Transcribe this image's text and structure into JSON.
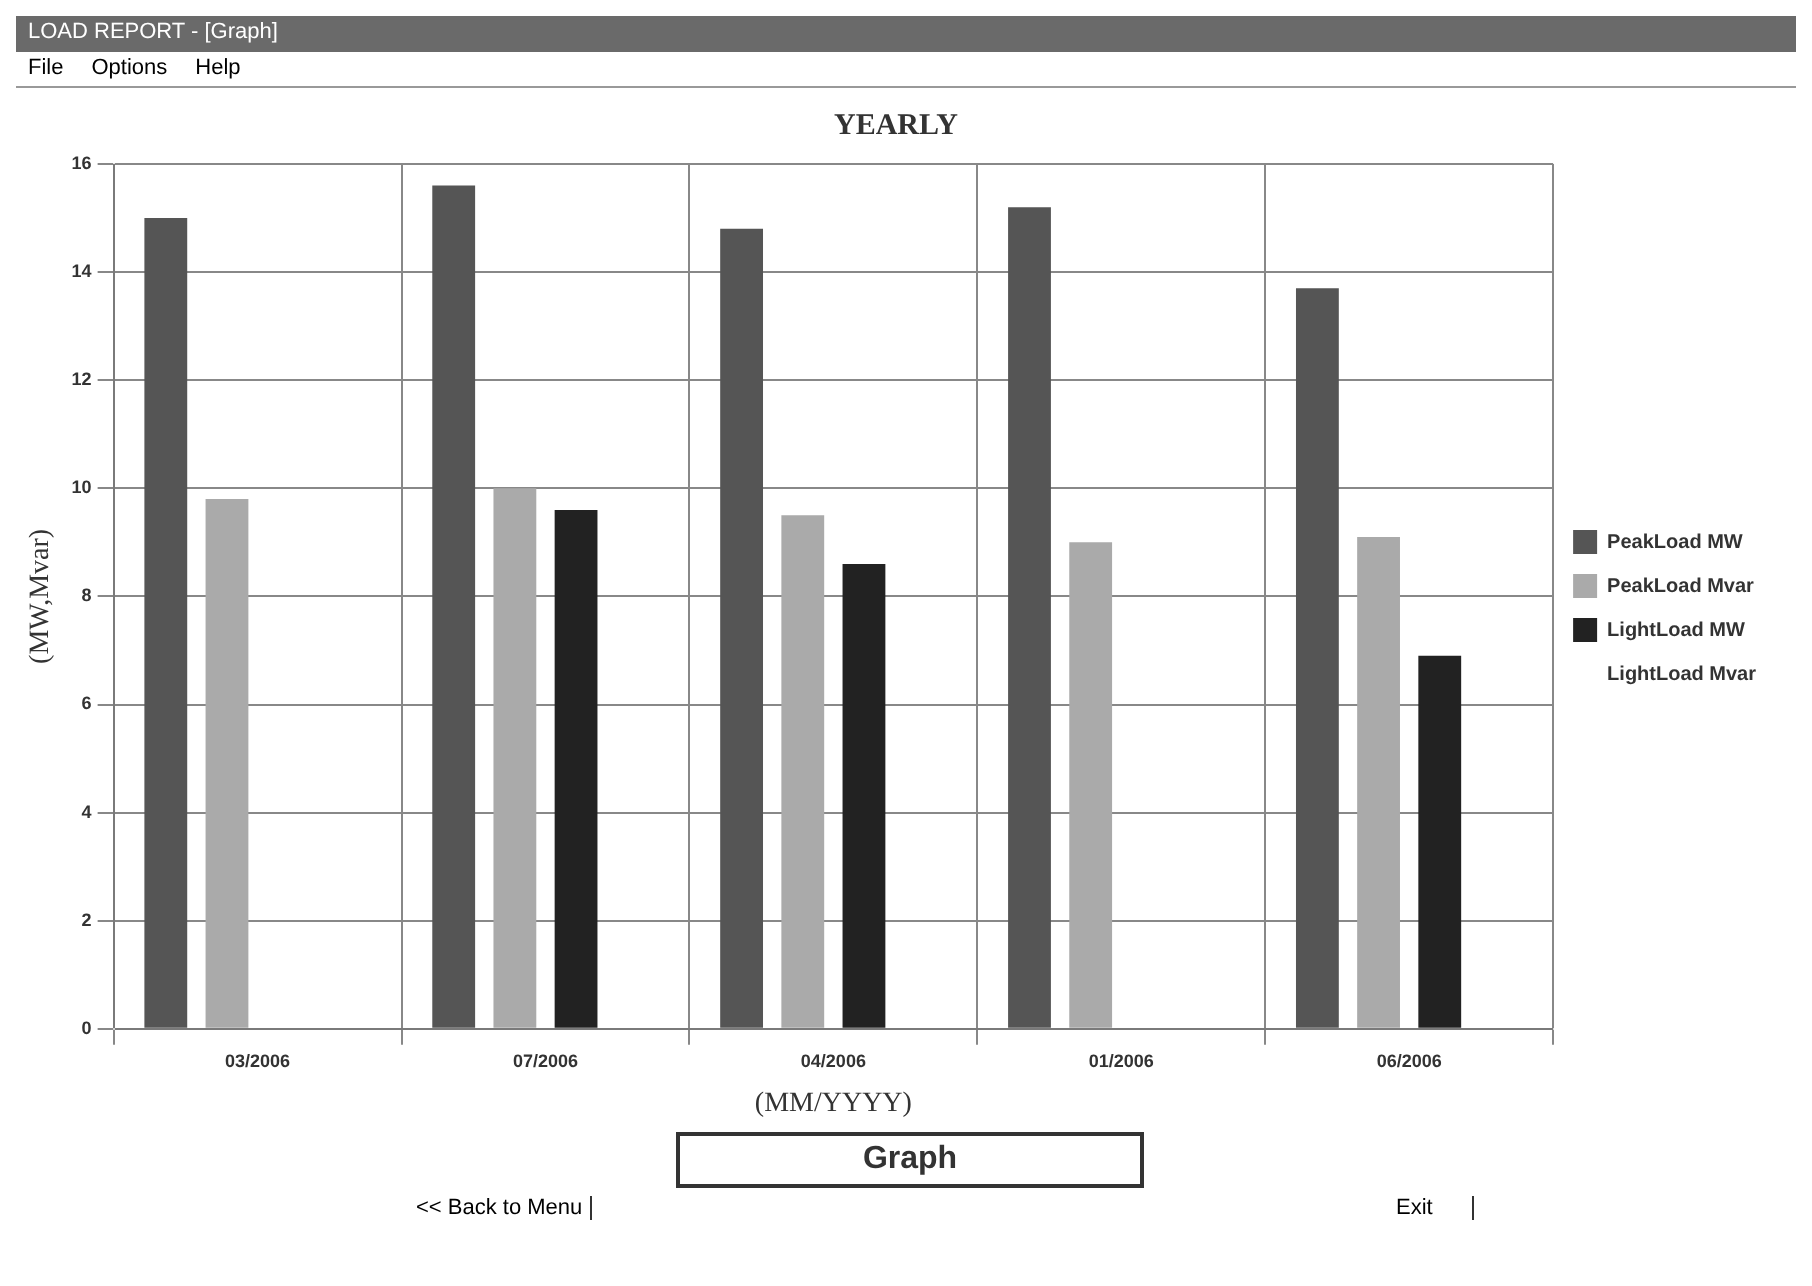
{
  "chart_data": {
    "type": "bar",
    "title": "YEARLY",
    "xlabel": "(MM/YYYY)",
    "ylabel": "(MW,Mvar)",
    "categories": [
      "03/2006",
      "07/2006",
      "04/2006",
      "01/2006",
      "06/2006"
    ],
    "series": [
      {
        "name": "PeakLoad MW",
        "color": "#555555",
        "values": [
          15.0,
          15.6,
          14.8,
          15.2,
          13.7
        ]
      },
      {
        "name": "PeakLoad Mvar",
        "color": "#aaaaaa",
        "values": [
          9.8,
          10.0,
          9.5,
          9.0,
          9.1
        ]
      },
      {
        "name": "LightLoad MW",
        "color": "#222222",
        "values": [
          null,
          9.6,
          8.6,
          null,
          6.9
        ]
      },
      {
        "name": "LightLoad Mvar",
        "values": [
          null,
          null,
          null,
          null,
          null
        ]
      }
    ],
    "ylim": [
      0,
      16
    ],
    "yticks": [
      0,
      2,
      4,
      6,
      8,
      10,
      12,
      14,
      16
    ],
    "grid": true,
    "legend": "right",
    "annotations": [
      "LOAD REPORT - [Graph]",
      "File",
      "Options",
      "Help",
      "<< Back to Menu",
      "Exit",
      "Graph"
    ]
  }
}
